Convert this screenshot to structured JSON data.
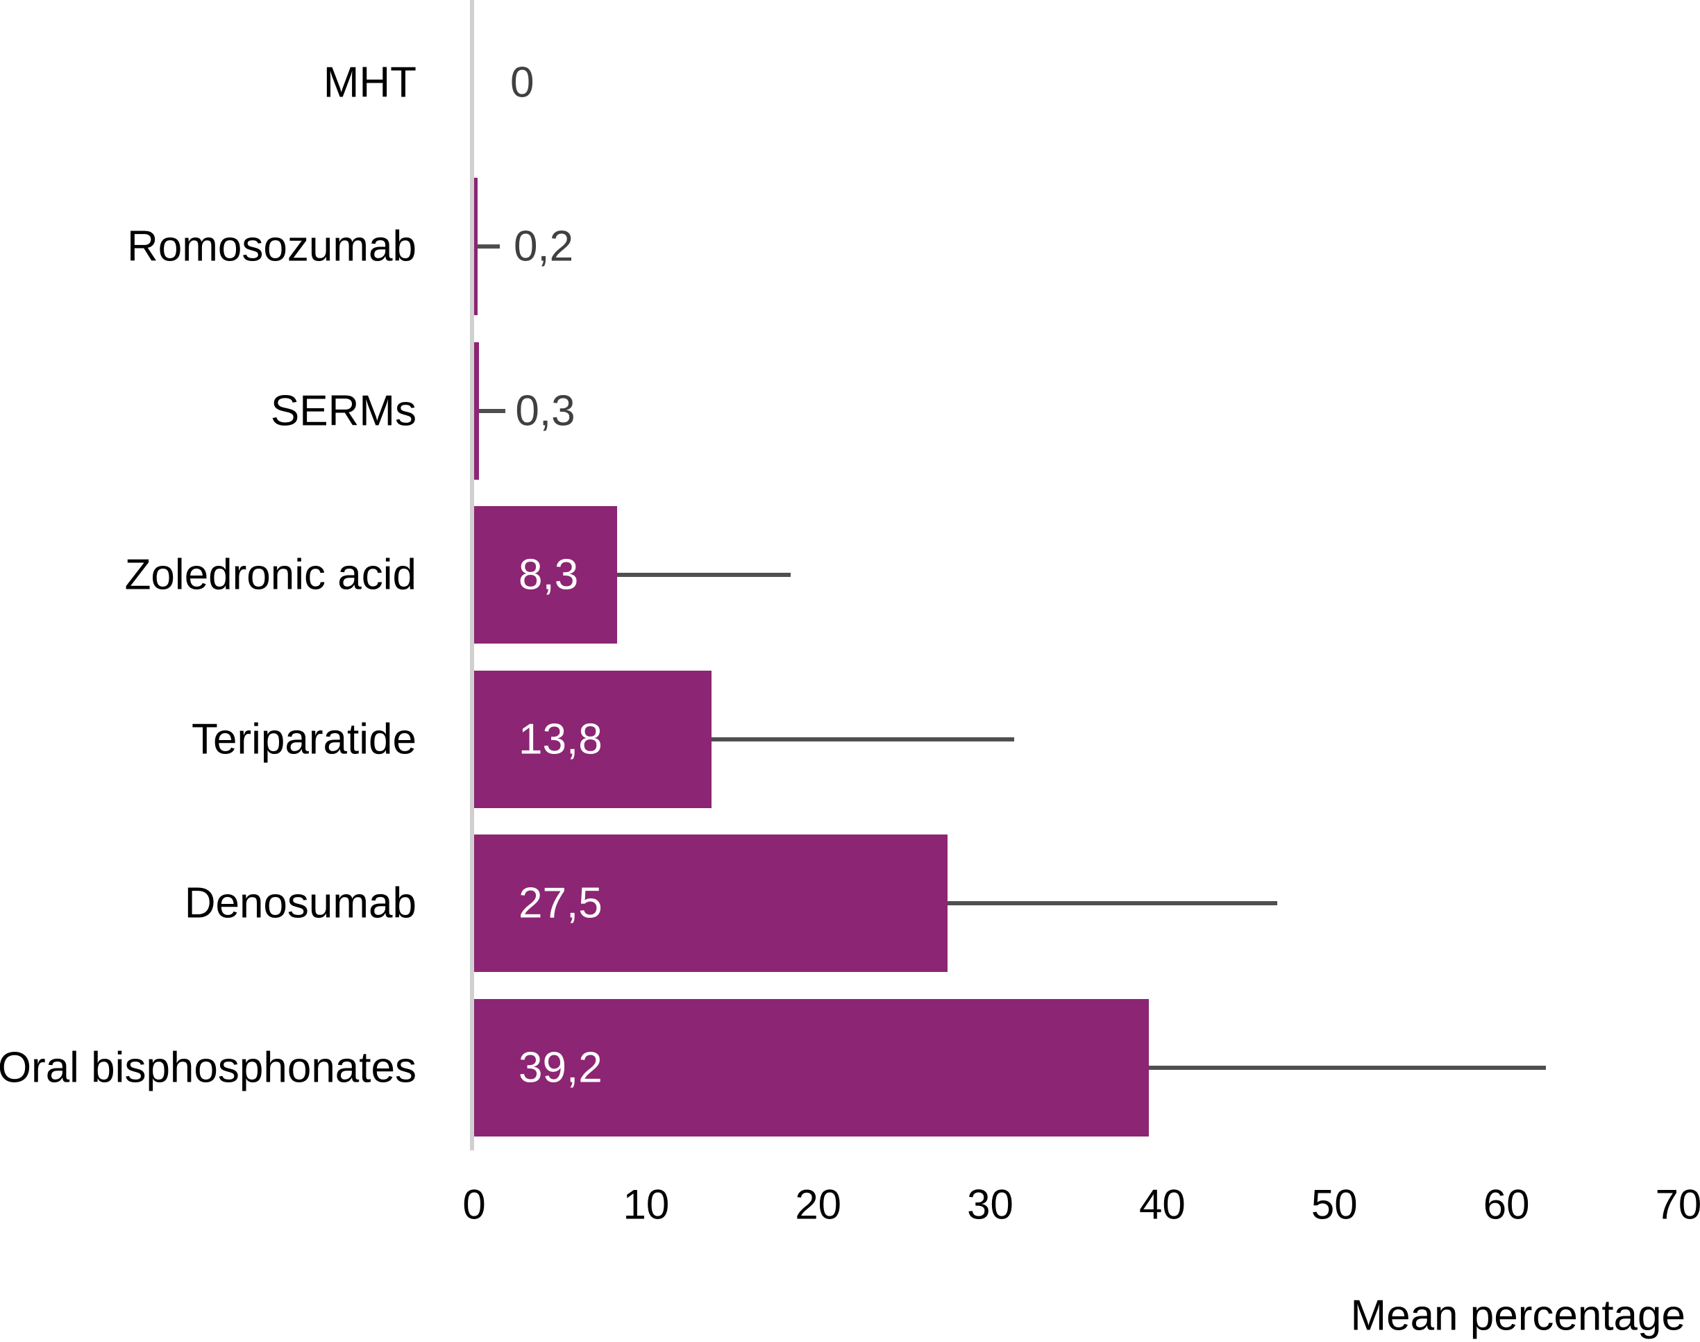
{
  "chart_data": {
    "type": "bar",
    "orientation": "horizontal",
    "title": "",
    "xlabel": "Mean percentage",
    "categories": [
      "MHT",
      "Romosozumab",
      "SERMs",
      "Zoledronic acid",
      "Teriparatide",
      "Denosumab",
      "Oral bisphosphonates"
    ],
    "values": [
      0,
      0.2,
      0.3,
      8.3,
      13.8,
      27.5,
      39.2
    ],
    "value_labels": [
      "0",
      "0,2",
      "0,3",
      "8,3",
      "13,8",
      "27,5",
      "39,2"
    ],
    "error_upper": [
      null,
      1.5,
      1.8,
      18.4,
      31.4,
      46.7,
      62.3
    ],
    "x_ticks": [
      "0",
      "10",
      "20",
      "30",
      "40",
      "50",
      "60",
      "70"
    ],
    "x_tick_values": [
      0,
      10,
      20,
      30,
      40,
      50,
      60,
      70
    ],
    "xlim": [
      0,
      70
    ],
    "grid": false,
    "legend": "none",
    "colors": {
      "bar": "#8C2573",
      "error_bar": "#4F4F4F",
      "axis_line": "#D0D0D0",
      "value_label_outside": "#404040",
      "value_label_inside": "#FFFFFF",
      "text": "#000000",
      "background": "#FFFFFF"
    }
  }
}
